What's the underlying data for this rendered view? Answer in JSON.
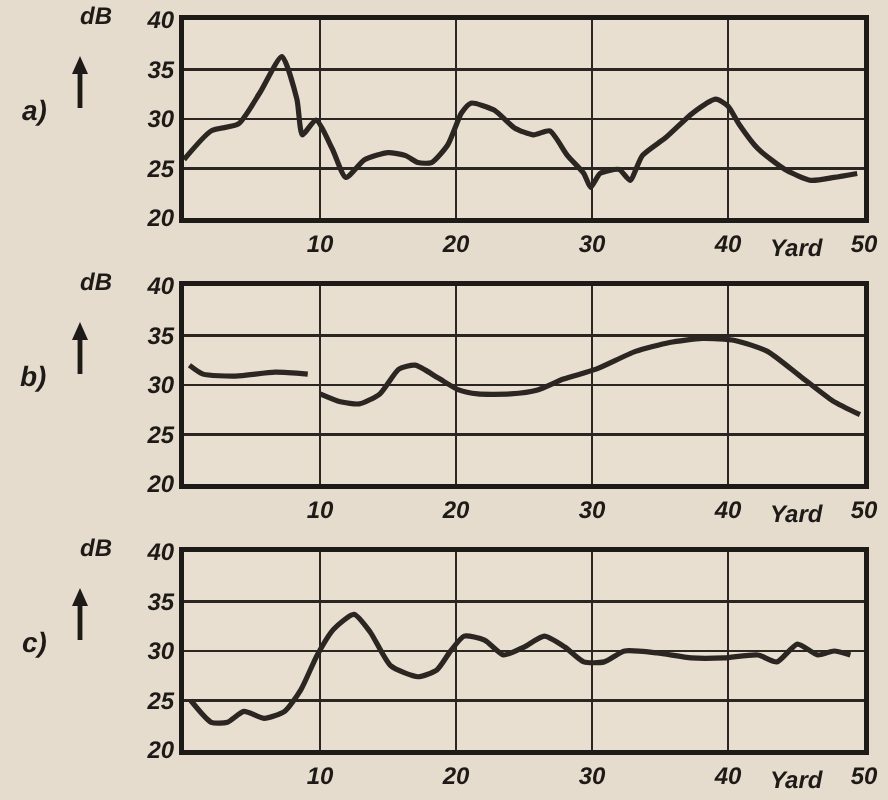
{
  "chart_data": [
    {
      "type": "line",
      "title": "a)",
      "ylabel": "dB",
      "xlabel": "Yard",
      "xlim": [
        0,
        50
      ],
      "ylim": [
        20,
        40
      ],
      "xticks": [
        10,
        20,
        30,
        40,
        50
      ],
      "yticks": [
        20,
        25,
        30,
        35,
        40
      ],
      "grid": true,
      "x": [
        0,
        2,
        4,
        5.6,
        7.2,
        8.3,
        8.7,
        9.7,
        10.9,
        11.9,
        13.3,
        15,
        16.3,
        17.2,
        18.2,
        19.4,
        20.4,
        21.1,
        22.8,
        24.3,
        25.7,
        26.9,
        28.2,
        29.4,
        29.9,
        30.6,
        32,
        32.8,
        33.7,
        35.4,
        37.4,
        39.1,
        40,
        40.8,
        42.2,
        44.2,
        46.1,
        47.8,
        49.5
      ],
      "series": [
        {
          "color": "#2b2622",
          "values": [
            25.9,
            28.8,
            29.5,
            32.7,
            36.3,
            32,
            28.4,
            29.9,
            27,
            24.1,
            25.9,
            26.6,
            26.3,
            25.6,
            25.6,
            27.4,
            30.6,
            31.6,
            30.9,
            29.1,
            28.4,
            28.8,
            26.3,
            24.5,
            23.1,
            24.5,
            24.9,
            23.8,
            26.3,
            28.1,
            30.6,
            32,
            31.3,
            29.5,
            27,
            24.9,
            23.8,
            24.1,
            24.5
          ]
        }
      ]
    },
    {
      "type": "line",
      "title": "b)",
      "ylabel": "dB",
      "xlabel": "Yard",
      "xlim": [
        0,
        50
      ],
      "ylim": [
        20,
        40
      ],
      "xticks": [
        10,
        20,
        30,
        40,
        50
      ],
      "yticks": [
        20,
        25,
        30,
        35,
        40
      ],
      "grid": true,
      "x": [
        0.4,
        1.4,
        3.8,
        6.7,
        9.1,
        9.5,
        10,
        11.5,
        12.9,
        14.4,
        15.8,
        17,
        18.7,
        20.2,
        21.6,
        24,
        26,
        27.9,
        30.3,
        33.2,
        35.7,
        38.1,
        40.5,
        42.9,
        45.3,
        47.7,
        49.7
      ],
      "series": [
        {
          "color": "#2b2622",
          "values": [
            32,
            31.1,
            30.9,
            31.3,
            31.1,
            null,
            29.1,
            28.3,
            28.1,
            29.1,
            31.6,
            32,
            30.7,
            29.5,
            29.1,
            29.1,
            29.5,
            30.6,
            31.6,
            33.4,
            34.3,
            34.7,
            34.5,
            33.4,
            30.9,
            28.4,
            27
          ]
        }
      ]
    },
    {
      "type": "line",
      "title": "c)",
      "ylabel": "dB",
      "xlabel": "Yard",
      "xlim": [
        0,
        50
      ],
      "ylim": [
        20,
        40
      ],
      "xticks": [
        10,
        20,
        30,
        40,
        50
      ],
      "yticks": [
        20,
        25,
        30,
        35,
        40
      ],
      "grid": true,
      "x": [
        0.5,
        2,
        3.2,
        4.4,
        5.9,
        7.4,
        8.6,
        9.8,
        11,
        12.5,
        13.7,
        15.2,
        17.2,
        18.6,
        19.6,
        20.6,
        22.1,
        23.5,
        25,
        26.5,
        28,
        29.4,
        30.9,
        32.4,
        34.8,
        37.3,
        39.7,
        42.2,
        43.6,
        45.1,
        46.6,
        47.8,
        49
      ],
      "series": [
        {
          "color": "#2b2622",
          "values": [
            25,
            22.8,
            22.8,
            23.9,
            23.2,
            23.9,
            26.1,
            29.6,
            32.2,
            33.7,
            31.9,
            28.5,
            27.4,
            28.1,
            30,
            31.5,
            31.1,
            29.6,
            30.4,
            31.5,
            30.4,
            28.9,
            28.9,
            30,
            29.8,
            29.3,
            29.3,
            29.6,
            28.9,
            30.7,
            29.6,
            30,
            29.6
          ]
        }
      ]
    }
  ]
}
